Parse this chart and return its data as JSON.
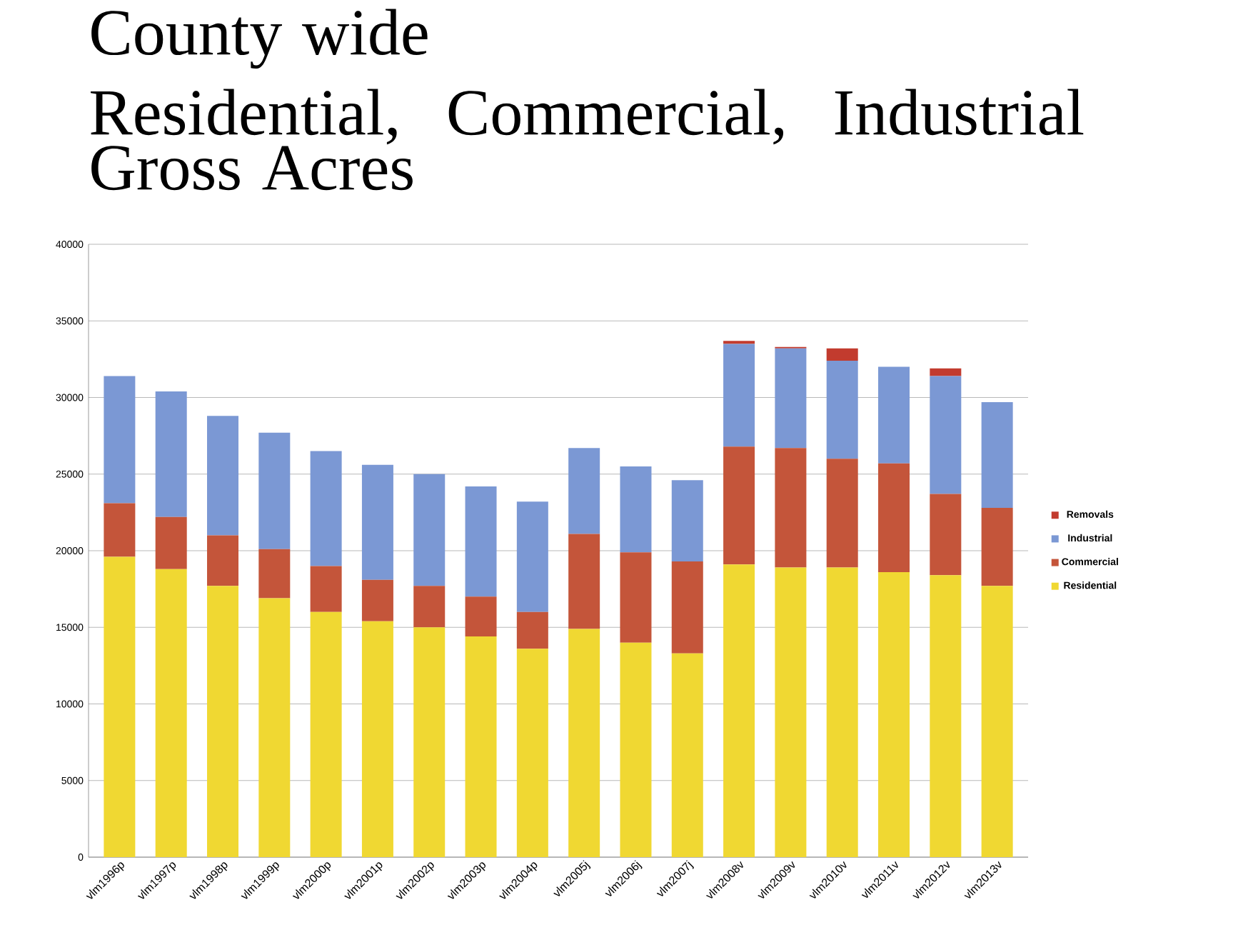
{
  "chart_data": {
    "type": "bar",
    "stacked": true,
    "title": "County wide",
    "subtitle": "Residential, Commercial, Industrial Gross Acres",
    "categories": [
      "vlm1996p",
      "vlm1997p",
      "vlm1998p",
      "vlm1999p",
      "vlm2000p",
      "vlm2001p",
      "vlm2002p",
      "vlm2003p",
      "vlm2004p",
      "vlm2005j",
      "vlm2006j",
      "vlm2007j",
      "vlm2008v",
      "vlm2009v",
      "vlm2010v",
      "vlm2011v",
      "vlm2012v",
      "vlm2013v"
    ],
    "series": [
      {
        "name": "Residential",
        "color": "#f0d832",
        "values": [
          19600,
          18800,
          17700,
          16900,
          16000,
          15400,
          15000,
          14400,
          13600,
          14900,
          14000,
          13300,
          19100,
          18900,
          18900,
          18600,
          18400,
          17700
        ]
      },
      {
        "name": "Commercial",
        "color": "#c4553a",
        "values": [
          3500,
          3400,
          3300,
          3200,
          3000,
          2700,
          2700,
          2600,
          2400,
          6200,
          5900,
          6000,
          7700,
          7800,
          7100,
          7100,
          5300,
          5100
        ]
      },
      {
        "name": "Industrial",
        "color": "#7b98d4",
        "values": [
          8300,
          8200,
          7800,
          7600,
          7500,
          7500,
          7300,
          7200,
          7200,
          5600,
          5600,
          5300,
          6700,
          6500,
          6400,
          6300,
          7700,
          6900
        ]
      },
      {
        "name": "Removals",
        "color": "#c23b2e",
        "values": [
          0,
          0,
          0,
          0,
          0,
          0,
          0,
          0,
          0,
          0,
          0,
          0,
          200,
          100,
          800,
          0,
          500,
          0
        ]
      }
    ],
    "ylim": [
      0,
      40000
    ],
    "yticks": [
      0,
      5000,
      10000,
      15000,
      20000,
      25000,
      30000,
      35000,
      40000
    ],
    "grid": "y",
    "legend": "right"
  }
}
